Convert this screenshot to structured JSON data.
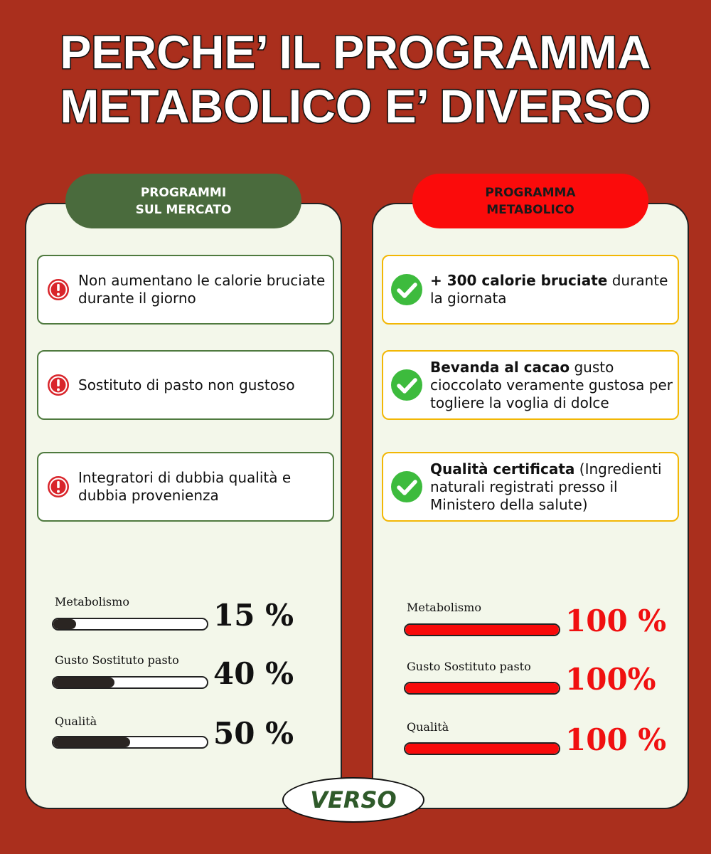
{
  "title": [
    "PERCHE’ IL PROGRAMMA",
    "METABOLICO E’ DIVERSO"
  ],
  "left": {
    "header": [
      "PROGRAMMI",
      "SUL MERCATO"
    ],
    "items": [
      {
        "text": "Non aumentano le calorie bruciate durante il giorno"
      },
      {
        "text": "Sostituto di pasto non gustoso"
      },
      {
        "text": "Integratori di dubbia qualità e dubbia provenienza"
      }
    ],
    "bars": [
      {
        "label": "Metabolismo",
        "value": 15,
        "value_label": "15 %"
      },
      {
        "label": "Gusto Sostituto pasto",
        "value": 40,
        "value_label": "40 %"
      },
      {
        "label": "Qualità",
        "value": 50,
        "value_label": "50 %"
      }
    ]
  },
  "right": {
    "header": [
      "PROGRAMMA",
      "METABOLICO"
    ],
    "items": [
      {
        "bold": "+ 300 calorie bruciate",
        "text": "durante la giornata"
      },
      {
        "bold": "Bevanda al cacao",
        "text": "gusto cioccolato veramente gustosa per togliere la voglia di dolce"
      },
      {
        "bold": "Qualità certificata",
        "text": "(Ingredienti naturali registrati presso il Ministero della salute)"
      }
    ],
    "bars": [
      {
        "label": "Metabolismo",
        "value": 100,
        "value_label": "100 %"
      },
      {
        "label": "Gusto Sostituto pasto",
        "value": 100,
        "value_label": "100%"
      },
      {
        "label": "Qualità",
        "value": 100,
        "value_label": "100 %"
      }
    ]
  },
  "footer": "VERSO"
}
